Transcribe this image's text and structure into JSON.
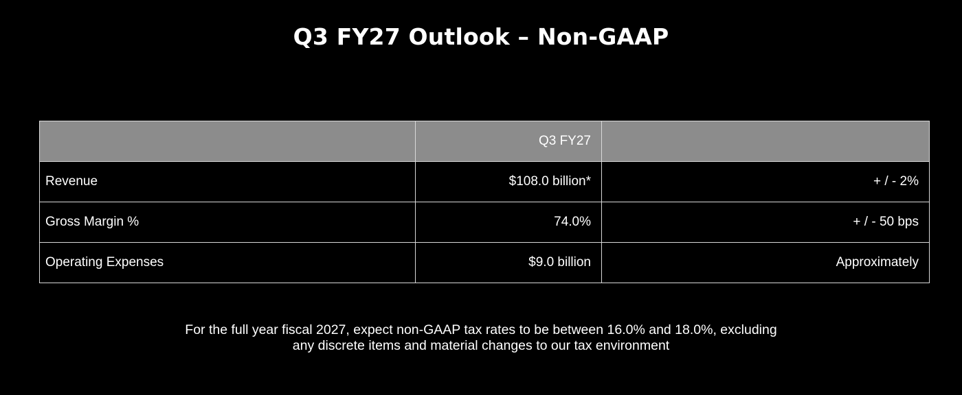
{
  "slide": {
    "title": "Q3 FY27 Outlook – Non-GAAP"
  },
  "table": {
    "header": {
      "label": "",
      "period": "Q3 FY27",
      "range": ""
    },
    "rows": [
      {
        "label": "Revenue",
        "value": "$108.0 billion*",
        "range": "+ / - 2%"
      },
      {
        "label": "Gross Margin %",
        "value": "74.0%",
        "range": "+ / - 50 bps"
      },
      {
        "label": "Operating Expenses",
        "value": "$9.0 billion",
        "range": "Approximately"
      }
    ]
  },
  "footnote": {
    "line1": "For the full year fiscal 2027, expect non-GAAP tax rates to be between 16.0% and 18.0%, excluding",
    "line2": "any discrete items and material changes to our tax environment"
  },
  "colors": {
    "background": "#000000",
    "header_fill": "#8c8c8c",
    "grid_lines": "#d9d9d9",
    "text": "#ffffff"
  }
}
